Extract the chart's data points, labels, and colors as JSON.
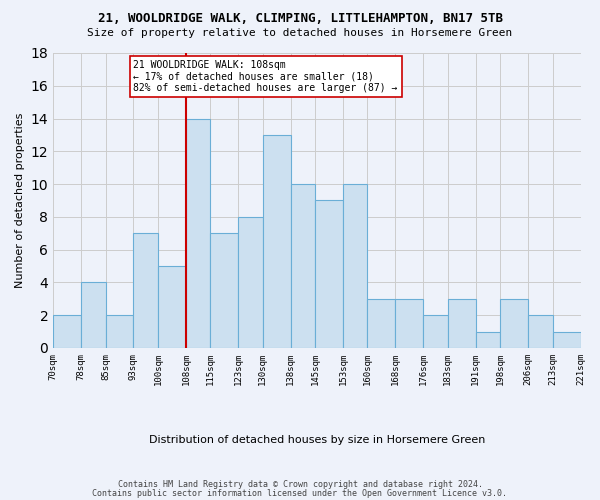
{
  "title_line1": "21, WOOLDRIDGE WALK, CLIMPING, LITTLEHAMPTON, BN17 5TB",
  "title_line2": "Size of property relative to detached houses in Horsemere Green",
  "xlabel": "Distribution of detached houses by size in Horsemere Green",
  "ylabel": "Number of detached properties",
  "footer_line1": "Contains HM Land Registry data © Crown copyright and database right 2024.",
  "footer_line2": "Contains public sector information licensed under the Open Government Licence v3.0.",
  "annotation_line1": "21 WOOLDRIDGE WALK: 108sqm",
  "annotation_line2": "← 17% of detached houses are smaller (18)",
  "annotation_line3": "82% of semi-detached houses are larger (87) →",
  "bar_edges": [
    70,
    78,
    85,
    93,
    100,
    108,
    115,
    123,
    130,
    138,
    145,
    153,
    160,
    168,
    176,
    183,
    191,
    198,
    206,
    213,
    221
  ],
  "bar_heights": [
    2,
    4,
    2,
    7,
    5,
    14,
    7,
    8,
    13,
    10,
    9,
    10,
    3,
    3,
    2,
    3,
    1,
    3,
    2,
    1
  ],
  "marker_value": 108,
  "bar_color": "#cce0f0",
  "bar_edge_color": "#6aaed6",
  "marker_line_color": "#cc0000",
  "annotation_box_edge_color": "#cc0000",
  "annotation_box_face_color": "#ffffff",
  "grid_color": "#cccccc",
  "background_color": "#eef2fa",
  "ylim": [
    0,
    18
  ],
  "yticks": [
    0,
    2,
    4,
    6,
    8,
    10,
    12,
    14,
    16,
    18
  ]
}
